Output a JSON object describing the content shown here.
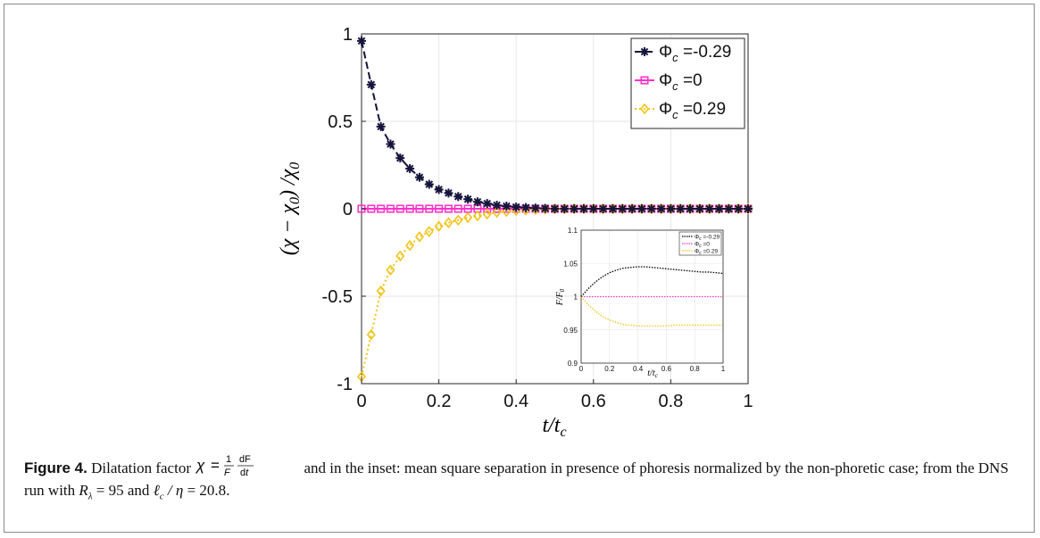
{
  "chart_data": [
    {
      "type": "line",
      "xlabel": "t/t_c",
      "ylabel": "(χ − χ0) / χ0",
      "xlim": [
        0,
        1
      ],
      "ylim": [
        -1,
        1
      ],
      "x_ticks": [
        "0",
        "0.2",
        "0.4",
        "0.6",
        "0.8",
        "1"
      ],
      "y_ticks": [
        "1",
        "0.5",
        "0",
        "-0.5",
        "-1"
      ],
      "grid": true,
      "legend_position": "top-right",
      "x": [
        0.0,
        0.025,
        0.05,
        0.075,
        0.1,
        0.125,
        0.15,
        0.175,
        0.2,
        0.225,
        0.25,
        0.275,
        0.3,
        0.325,
        0.35,
        0.375,
        0.4,
        0.425,
        0.45,
        0.475,
        0.5,
        0.525,
        0.55,
        0.575,
        0.6,
        0.625,
        0.65,
        0.675,
        0.7,
        0.725,
        0.75,
        0.775,
        0.8,
        0.825,
        0.85,
        0.875,
        0.9,
        0.925,
        0.95,
        0.975,
        1.0
      ],
      "series": [
        {
          "name": "Φ_c =-0.29",
          "color": "#14143c",
          "marker": "asterisk",
          "style": "dashed",
          "values": [
            0.96,
            0.71,
            0.47,
            0.37,
            0.29,
            0.23,
            0.18,
            0.14,
            0.11,
            0.09,
            0.07,
            0.055,
            0.04,
            0.03,
            0.02,
            0.015,
            0.01,
            0.007,
            0.004,
            0.002,
            0.0,
            0.0,
            0.0,
            0.0,
            0.0,
            0.0,
            0.0,
            0.0,
            0.0,
            0.0,
            0.0,
            0.0,
            0.0,
            0.0,
            0.0,
            0.0,
            0.0,
            0.0,
            0.0,
            0.0,
            0.0
          ]
        },
        {
          "name": "Φ_c =0",
          "color": "#ff33cc",
          "marker": "square",
          "style": "solid",
          "values": [
            0.0,
            0.0,
            0.0,
            0.0,
            0.0,
            0.0,
            0.0,
            0.0,
            0.0,
            0.0,
            0.0,
            0.0,
            0.0,
            0.0,
            0.0,
            0.0,
            0.0,
            0.0,
            0.0,
            0.0,
            0.0,
            0.0,
            0.0,
            0.0,
            0.0,
            0.0,
            0.0,
            0.0,
            0.0,
            0.0,
            0.0,
            0.0,
            0.0,
            0.0,
            0.0,
            0.0,
            0.0,
            0.0,
            0.0,
            0.0,
            0.0
          ]
        },
        {
          "name": "Φ_c =0.29",
          "color": "#f2c418",
          "marker": "diamond",
          "style": "dotted",
          "values": [
            -0.96,
            -0.72,
            -0.47,
            -0.35,
            -0.27,
            -0.21,
            -0.16,
            -0.13,
            -0.1,
            -0.08,
            -0.065,
            -0.05,
            -0.04,
            -0.03,
            -0.02,
            -0.015,
            -0.01,
            -0.007,
            -0.004,
            -0.002,
            0.0,
            0.0,
            0.0,
            0.0,
            0.0,
            0.0,
            0.0,
            0.0,
            0.0,
            0.0,
            0.0,
            0.0,
            0.0,
            0.0,
            0.0,
            0.0,
            0.0,
            0.0,
            0.0,
            0.0,
            0.0
          ]
        }
      ]
    },
    {
      "type": "line",
      "xlabel": "t/t_c",
      "ylabel": "F/F_0",
      "xlim": [
        0,
        1
      ],
      "ylim": [
        0.9,
        1.1
      ],
      "x_ticks": [
        "0",
        "0.2",
        "0.4",
        "0.6",
        "0.8",
        "1"
      ],
      "y_ticks": [
        "1.1",
        "1.05",
        "1",
        "0.95",
        "0.9"
      ],
      "grid": true,
      "legend_position": "top-right",
      "x": [
        0.0,
        0.05,
        0.1,
        0.15,
        0.2,
        0.25,
        0.3,
        0.35,
        0.4,
        0.45,
        0.5,
        0.55,
        0.6,
        0.65,
        0.7,
        0.75,
        0.8,
        0.85,
        0.9,
        0.95,
        1.0
      ],
      "series": [
        {
          "name": "Φ_c =-0.29",
          "color": "#000000",
          "values": [
            1.0,
            1.012,
            1.022,
            1.03,
            1.036,
            1.04,
            1.043,
            1.044,
            1.045,
            1.045,
            1.044,
            1.043,
            1.042,
            1.041,
            1.04,
            1.039,
            1.038,
            1.037,
            1.037,
            1.036,
            1.035
          ]
        },
        {
          "name": "Φ_c =0",
          "color": "#ff33cc",
          "values": [
            1.0,
            1.0,
            1.0,
            1.0,
            1.0,
            1.0,
            1.0,
            1.0,
            1.0,
            1.0,
            1.0,
            1.0,
            1.0,
            1.0,
            1.0,
            1.0,
            1.0,
            1.0,
            1.0,
            1.0,
            1.0
          ]
        },
        {
          "name": "Φ_c =0.29",
          "color": "#f2c418",
          "values": [
            1.0,
            0.988,
            0.978,
            0.97,
            0.965,
            0.961,
            0.958,
            0.957,
            0.956,
            0.956,
            0.956,
            0.956,
            0.956,
            0.957,
            0.957,
            0.957,
            0.957,
            0.957,
            0.957,
            0.957,
            0.957
          ]
        }
      ]
    }
  ],
  "caption": {
    "label": "Figure 4.",
    "text_1": " Dilatation factor ",
    "text_2": " and in the inset: mean square separation in presence of phoresis normalized by the non-phoretic case; from the DNS run with ",
    "text_3": " and ",
    "text_4": "."
  }
}
